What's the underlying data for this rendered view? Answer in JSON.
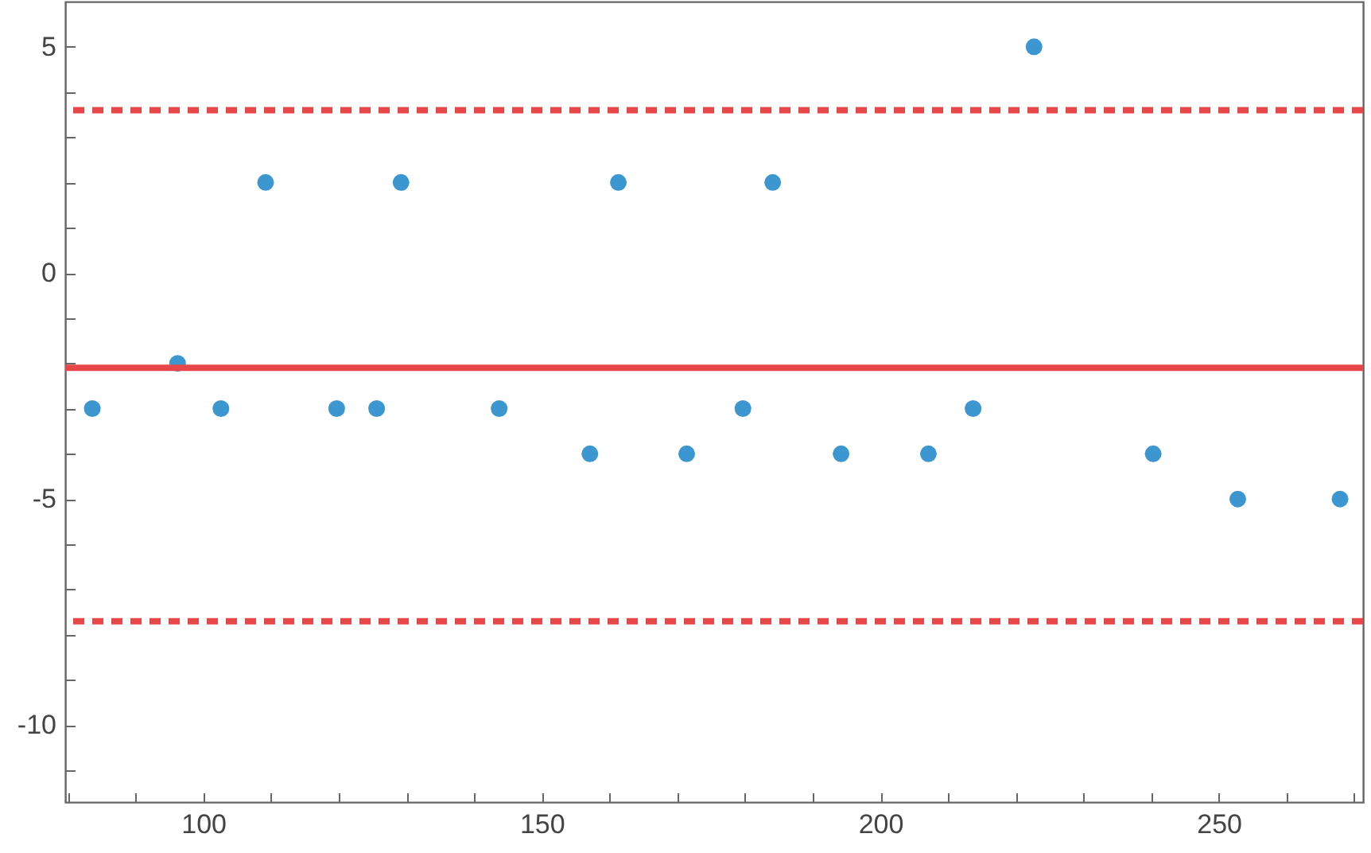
{
  "chart_data": {
    "type": "scatter",
    "x": [
      83.6,
      96.2,
      102.6,
      109.2,
      119.7,
      125.6,
      129.2,
      143.7,
      157.1,
      161.3,
      171.4,
      179.7,
      184.1,
      194.2,
      207.1,
      213.7,
      222.7,
      240.3,
      252.8,
      267.9
    ],
    "series": [
      {
        "color": "#3c96cf",
        "values": [
          -3,
          -2,
          -3,
          2,
          -3,
          -3,
          2,
          -3,
          -4,
          2,
          -4,
          -3,
          2,
          -4,
          -4,
          -3,
          5,
          -4,
          -5,
          -5
        ]
      }
    ],
    "marker": "circle",
    "xlim": [
      79.6,
      271.3
    ],
    "ylim": [
      -11.7,
      6
    ],
    "xticks": [
      {
        "value": 80,
        "label": null
      },
      {
        "value": 90,
        "label": null
      },
      100,
      {
        "value": 110,
        "label": null
      },
      {
        "value": 120,
        "label": null
      },
      {
        "value": 130,
        "label": null
      },
      {
        "value": 140,
        "label": null
      },
      150,
      {
        "value": 160,
        "label": null
      },
      {
        "value": 170,
        "label": null
      },
      {
        "value": 180,
        "label": null
      },
      {
        "value": 190,
        "label": null
      },
      200,
      {
        "value": 210,
        "label": null
      },
      {
        "value": 220,
        "label": null
      },
      {
        "value": 230,
        "label": null
      },
      {
        "value": 240,
        "label": null
      },
      250,
      {
        "value": 260,
        "label": null
      },
      {
        "value": 270,
        "label": null
      }
    ],
    "yticks": [
      {
        "value": -11,
        "label": null
      },
      -10,
      {
        "value": -9,
        "label": null
      },
      {
        "value": -8,
        "label": null
      },
      {
        "value": -7,
        "label": null
      },
      {
        "value": -6,
        "label": null
      },
      -5,
      {
        "value": -4,
        "label": null
      },
      {
        "value": -3,
        "label": null
      },
      {
        "value": -2,
        "label": null
      },
      {
        "value": -1,
        "label": null
      },
      0,
      {
        "value": 1,
        "label": null
      },
      {
        "value": 2,
        "label": null
      },
      {
        "value": 3,
        "label": null
      },
      {
        "value": 4,
        "label": null
      },
      5
    ],
    "ref_lines": [
      {
        "axis": "y",
        "value": -2.1,
        "color": "#e8474a",
        "line_style": "solid"
      },
      {
        "axis": "y",
        "value": 3.6,
        "color": "#e8474a",
        "line_style": "dashed"
      },
      {
        "axis": "y",
        "value": -7.7,
        "color": "#e8474a",
        "line_style": "dashed"
      }
    ],
    "grid": false
  }
}
